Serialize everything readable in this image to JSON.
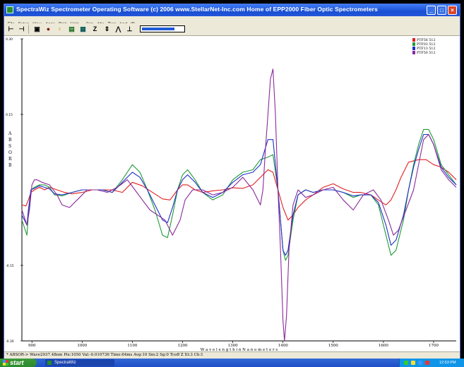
{
  "window": {
    "title": "SpectraWiz  Spectrometer Operating Software (c) 2006  www.StellarNet-Inc.com  Home of EPP2000 Fiber Optic Spectrometers",
    "minimize_glyph": "_",
    "maximize_glyph": "□",
    "close_glyph": "×"
  },
  "menu": [
    "File",
    "Setup",
    "View",
    "Apps",
    "Disk",
    "Help",
    "Scp",
    "Abs",
    "Tran",
    "Irad",
    "ID"
  ],
  "toolbar": {
    "icons": [
      "cursor-left-icon",
      "cursor-right-icon",
      "monitor-icon",
      "light-icon",
      "lamp-icon",
      "save-icon",
      "camera-icon",
      "zero-icon",
      "peak-icon",
      "scale-icon",
      "baseline-icon"
    ],
    "glyphs": [
      "⊢",
      "⊣",
      "▣",
      "●",
      "♀",
      "▤",
      "▦",
      "Z",
      "⇕",
      "⋀",
      "⊥"
    ],
    "slider_fraction": 0.8
  },
  "chart_data": {
    "type": "line",
    "xlabel": "W a v e l e n g t h   i n   N a n o m e t e r s",
    "ylabel": "ABSORB",
    "xlim": [
      880,
      1745
    ],
    "ylim": [
      -0.3,
      0.3
    ],
    "x_ticks": [
      900,
      1000,
      1100,
      1200,
      1300,
      1400,
      1500,
      1600,
      1700
    ],
    "y_ticks": [
      {
        "value": 0.3,
        "label": "0.30"
      },
      {
        "value": 0.15,
        "label": "0.15"
      },
      {
        "value": -0.15,
        "label": "-0.15"
      },
      {
        "value": -0.3,
        "label": "-0.30"
      }
    ],
    "grid": false,
    "legend_position": "top-right",
    "series": [
      {
        "name": "PTF56 512",
        "color": "#e02020",
        "x": [
          880,
          888,
          893,
          898,
          905,
          915,
          925,
          935,
          950,
          965,
          980,
          1000,
          1020,
          1040,
          1060,
          1080,
          1100,
          1120,
          1140,
          1160,
          1175,
          1190,
          1200,
          1210,
          1225,
          1240,
          1260,
          1280,
          1300,
          1320,
          1340,
          1355,
          1370,
          1380,
          1390,
          1400,
          1410,
          1420,
          1430,
          1445,
          1460,
          1480,
          1500,
          1520,
          1540,
          1555,
          1575,
          1590,
          1605,
          1615,
          1625,
          1635,
          1650,
          1670,
          1685,
          1700,
          1715,
          1730,
          1745
        ],
        "y": [
          -0.03,
          -0.032,
          -0.02,
          -0.005,
          0.0,
          0.005,
          0.0,
          0.005,
          0.0,
          -0.005,
          -0.008,
          -0.005,
          0.0,
          0.0,
          0.0,
          -0.005,
          0.015,
          0.008,
          -0.005,
          -0.018,
          -0.02,
          0.0,
          0.01,
          0.01,
          0.0,
          -0.005,
          -0.002,
          0.0,
          0.004,
          0.003,
          0.01,
          0.025,
          0.04,
          0.035,
          0.0,
          -0.035,
          -0.06,
          -0.05,
          -0.035,
          -0.02,
          -0.01,
          0.005,
          0.012,
          0.002,
          -0.005,
          -0.005,
          -0.01,
          -0.02,
          -0.03,
          -0.02,
          0.0,
          0.025,
          0.055,
          0.06,
          0.06,
          0.05,
          0.045,
          0.035,
          0.02
        ]
      },
      {
        "name": "PTF03 512",
        "color": "#1f9a3a",
        "x": [
          880,
          885,
          890,
          893,
          898,
          905,
          915,
          925,
          935,
          945,
          960,
          980,
          1000,
          1020,
          1040,
          1060,
          1080,
          1100,
          1115,
          1130,
          1145,
          1160,
          1170,
          1180,
          1190,
          1200,
          1210,
          1225,
          1240,
          1260,
          1280,
          1300,
          1320,
          1340,
          1355,
          1370,
          1380,
          1390,
          1400,
          1405,
          1410,
          1420,
          1430,
          1445,
          1460,
          1480,
          1500,
          1520,
          1540,
          1555,
          1575,
          1590,
          1605,
          1615,
          1625,
          1640,
          1650,
          1660,
          1670,
          1680,
          1690,
          1700,
          1715,
          1730,
          1745
        ],
        "y": [
          -0.06,
          -0.075,
          -0.09,
          -0.05,
          0.0,
          0.005,
          0.01,
          0.01,
          0.005,
          -0.01,
          -0.012,
          -0.005,
          0.0,
          0.0,
          0.0,
          -0.005,
          0.02,
          0.05,
          0.035,
          0.0,
          -0.04,
          -0.09,
          -0.095,
          -0.05,
          0.0,
          0.03,
          0.04,
          0.02,
          -0.005,
          -0.02,
          -0.01,
          0.02,
          0.035,
          0.04,
          0.06,
          0.065,
          0.07,
          0.0,
          -0.12,
          -0.14,
          -0.13,
          -0.06,
          -0.01,
          0.0,
          -0.005,
          0.0,
          0.0,
          -0.005,
          -0.015,
          -0.01,
          -0.01,
          -0.03,
          -0.09,
          -0.13,
          -0.12,
          -0.06,
          0.0,
          0.05,
          0.09,
          0.12,
          0.12,
          0.1,
          0.05,
          0.03,
          0.01
        ]
      },
      {
        "name": "PTF13 512",
        "color": "#2030c8",
        "x": [
          880,
          885,
          890,
          893,
          898,
          905,
          915,
          925,
          935,
          945,
          960,
          980,
          1000,
          1020,
          1040,
          1060,
          1080,
          1100,
          1115,
          1130,
          1145,
          1160,
          1170,
          1180,
          1190,
          1200,
          1210,
          1225,
          1240,
          1260,
          1280,
          1300,
          1320,
          1340,
          1355,
          1370,
          1380,
          1390,
          1400,
          1405,
          1410,
          1420,
          1430,
          1445,
          1460,
          1480,
          1500,
          1520,
          1540,
          1555,
          1575,
          1590,
          1605,
          1615,
          1625,
          1640,
          1650,
          1660,
          1670,
          1680,
          1690,
          1700,
          1715,
          1730,
          1745
        ],
        "y": [
          -0.05,
          -0.06,
          -0.07,
          -0.04,
          0.0,
          0.003,
          0.008,
          0.005,
          0.002,
          -0.008,
          -0.01,
          -0.005,
          0.0,
          0.0,
          0.0,
          -0.005,
          0.015,
          0.035,
          0.025,
          0.0,
          -0.03,
          -0.06,
          -0.065,
          -0.035,
          0.0,
          0.02,
          0.03,
          0.015,
          -0.005,
          -0.015,
          -0.005,
          0.015,
          0.03,
          0.035,
          0.05,
          0.1,
          0.1,
          0.0,
          -0.12,
          -0.13,
          -0.12,
          -0.05,
          -0.01,
          0.0,
          -0.005,
          0.0,
          0.0,
          -0.005,
          -0.012,
          -0.01,
          -0.01,
          -0.025,
          -0.07,
          -0.11,
          -0.1,
          -0.05,
          0.0,
          0.045,
          0.08,
          0.11,
          0.11,
          0.09,
          0.045,
          0.025,
          0.01
        ]
      },
      {
        "name": "PTF50 512",
        "color": "#8a2a9a",
        "x": [
          880,
          885,
          890,
          895,
          900,
          905,
          910,
          920,
          935,
          950,
          960,
          975,
          990,
          1010,
          1030,
          1050,
          1070,
          1090,
          1105,
          1120,
          1135,
          1150,
          1165,
          1180,
          1195,
          1205,
          1220,
          1240,
          1260,
          1280,
          1300,
          1320,
          1340,
          1355,
          1360,
          1365,
          1370,
          1375,
          1380,
          1385,
          1390,
          1395,
          1400,
          1403,
          1407,
          1412,
          1420,
          1430,
          1445,
          1460,
          1480,
          1500,
          1520,
          1540,
          1560,
          1580,
          1595,
          1610,
          1620,
          1630,
          1645,
          1660,
          1670,
          1680,
          1690,
          1700,
          1715,
          1730,
          1745
        ],
        "y": [
          -0.04,
          -0.055,
          -0.07,
          -0.04,
          0.01,
          0.02,
          0.02,
          0.015,
          0.01,
          -0.01,
          -0.03,
          -0.035,
          -0.02,
          0.0,
          0.0,
          -0.005,
          0.005,
          0.02,
          0.0,
          -0.02,
          -0.04,
          -0.05,
          -0.06,
          -0.09,
          -0.06,
          -0.02,
          0.0,
          0.0,
          -0.01,
          -0.005,
          0.005,
          0.025,
          0.0,
          -0.03,
          0.0,
          0.08,
          0.15,
          0.22,
          0.24,
          0.15,
          0.0,
          -0.12,
          -0.26,
          -0.3,
          -0.25,
          -0.12,
          -0.03,
          0.0,
          -0.015,
          -0.01,
          0.0,
          0.005,
          -0.02,
          -0.04,
          -0.01,
          0.0,
          -0.02,
          -0.06,
          -0.09,
          -0.08,
          -0.04,
          0.0,
          0.05,
          0.1,
          0.11,
          0.09,
          0.04,
          0.02,
          0.005
        ]
      }
    ]
  },
  "status": {
    "text": "* ABSOR-> Wave2937.48nm Pix:1050 Val:-0.010736 Time:64ms Avg:10 Sm:2 Sg:0 Tcoff Z Xt:3 Ch:1"
  },
  "taskbar": {
    "start": "start",
    "task": "SpectraWiz",
    "clock": "12:53 PM"
  }
}
